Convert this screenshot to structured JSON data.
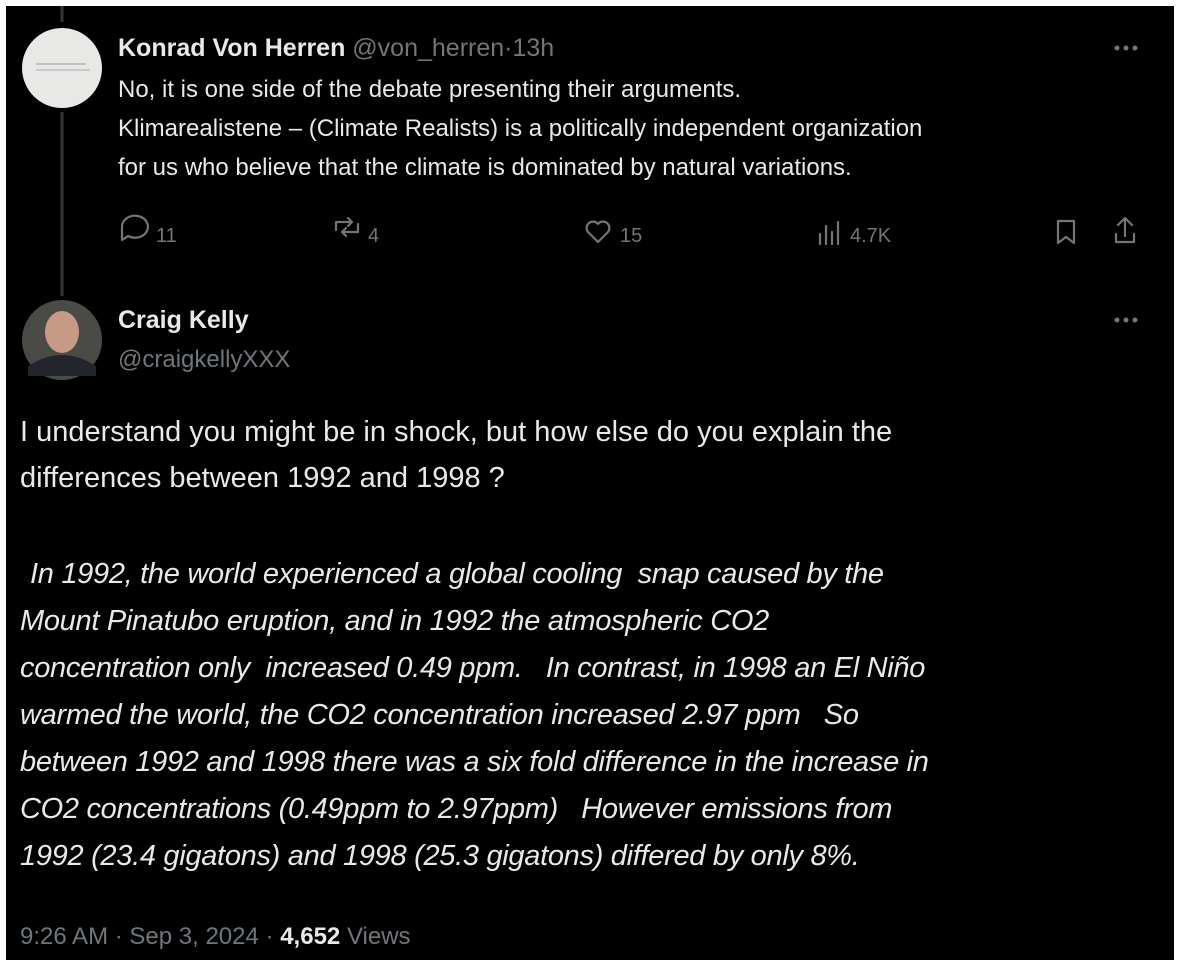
{
  "reply": {
    "name": "Konrad Von Herren",
    "handle": "@von_herren",
    "separator": "·",
    "time": "13h",
    "text_lines": [
      "No, it is one side of the debate presenting their arguments.",
      "Klimarealistene – (Climate Realists) is a politically independent organization",
      "for us who believe that the climate is dominated by natural variations."
    ],
    "stats": {
      "replies": "11",
      "reposts": "4",
      "likes": "15",
      "views": "4.7K"
    }
  },
  "tweet": {
    "name": "Craig Kelly",
    "handle": "@craigkellyXXX",
    "text_lines": [
      "I understand you might be in shock, but how else do you explain the",
      "differences between 1992 and 1998 ?"
    ],
    "quote_lines": [
      "In 1992, the world experienced a global cooling  snap caused by the",
      "Mount Pinatubo eruption, and in 1992 the atmospheric CO2",
      "concentration only  increased 0.49 ppm.   In contrast, in 1998 an El Niño",
      "warmed the world, the CO2 concentration increased 2.97 ppm   So",
      "between 1992 and 1998 there was a six fold difference in the increase in",
      "CO2 concentrations (0.49ppm to 2.97ppm)   However emissions from",
      "1992 (23.4 gigatons) and 1998 (25.3 gigatons) differed by only 8%."
    ],
    "footer": {
      "time": "9:26 AM",
      "separator": "·",
      "date": "Sep 3, 2024",
      "views_count": "4,652",
      "views_label": "Views"
    }
  }
}
